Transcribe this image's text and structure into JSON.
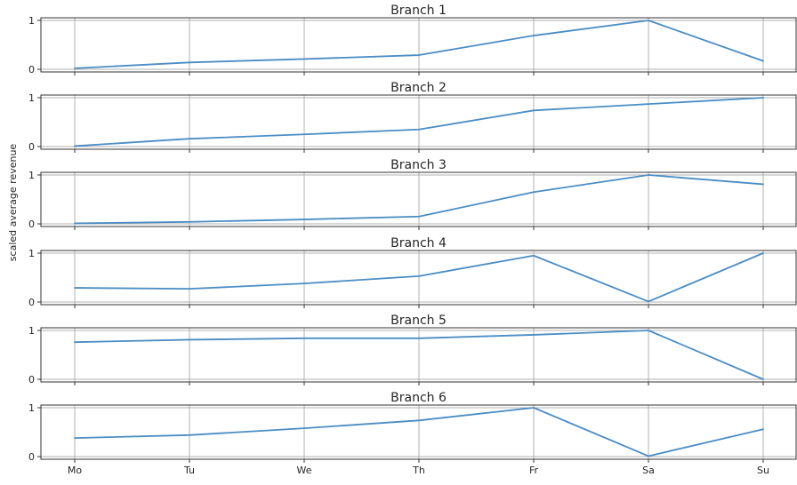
{
  "chart_data": {
    "type": "line",
    "ylabel": "scaled average revenue",
    "categories": [
      "Mo",
      "Tu",
      "We",
      "Th",
      "Fr",
      "Sa",
      "Su"
    ],
    "ylim": [
      0,
      1
    ],
    "yticks": [
      "0",
      "1"
    ],
    "grid": true,
    "line_color": "#4a8dc4",
    "panels": [
      {
        "title": "Branch 1",
        "values": [
          0.02,
          0.14,
          0.21,
          0.29,
          0.69,
          1.0,
          0.17
        ]
      },
      {
        "title": "Branch 2",
        "values": [
          0.01,
          0.16,
          0.25,
          0.35,
          0.74,
          0.87,
          1.0
        ]
      },
      {
        "title": "Branch 3",
        "values": [
          0.01,
          0.04,
          0.09,
          0.15,
          0.65,
          1.0,
          0.81
        ]
      },
      {
        "title": "Branch 4",
        "values": [
          0.29,
          0.27,
          0.38,
          0.53,
          0.95,
          0.01,
          1.0
        ]
      },
      {
        "title": "Branch 5",
        "values": [
          0.76,
          0.81,
          0.84,
          0.84,
          0.91,
          1.0,
          0.0
        ]
      },
      {
        "title": "Branch 6",
        "values": [
          0.38,
          0.44,
          0.58,
          0.74,
          1.0,
          0.01,
          0.56
        ]
      }
    ]
  }
}
